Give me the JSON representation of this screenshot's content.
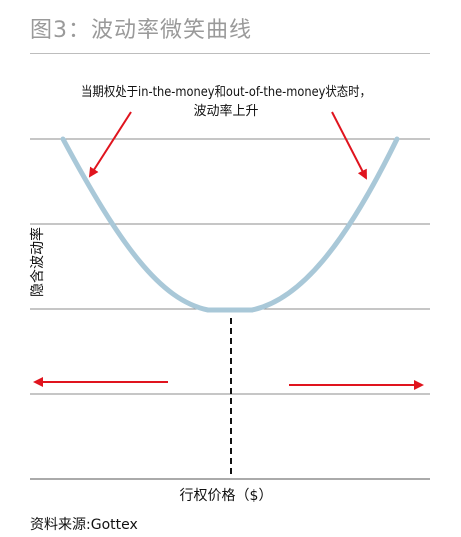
{
  "figure": {
    "title": "图3：波动率微笑曲线",
    "source": "资料来源:Gottex"
  },
  "chart_data": {
    "type": "line",
    "xlabel": "行权价格（$）",
    "ylabel": "隐含波动率",
    "grid": true,
    "annotation": {
      "line1": "当期权处于in-the-money和out-of-the-money状态时，",
      "line2": "波动率上升"
    },
    "colors": {
      "curve": "#a9c8d8",
      "arrows": "#e0141e",
      "grid": "#8c8c8c",
      "axis": "#555555"
    }
  }
}
